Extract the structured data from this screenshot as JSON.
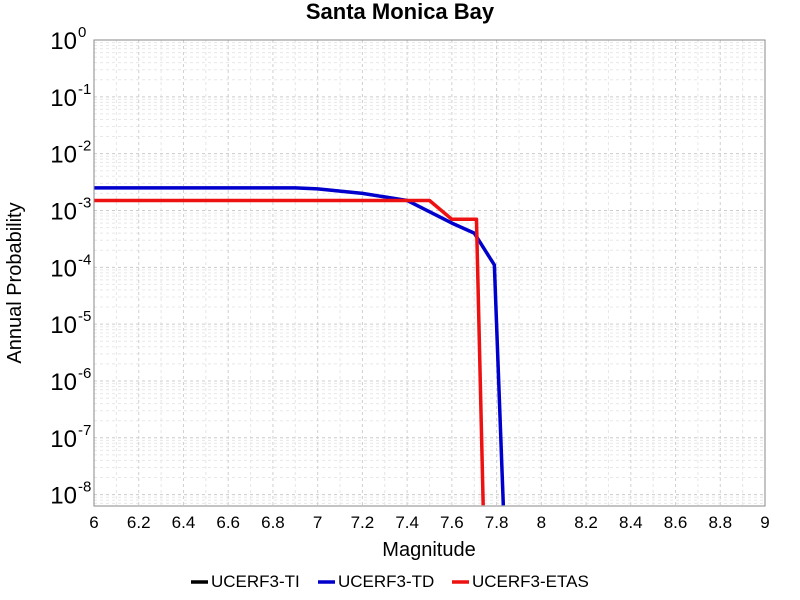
{
  "chart_data": {
    "type": "line",
    "title": "Santa Monica Bay",
    "xlabel": "Magnitude",
    "ylabel": "Annual Probability",
    "xlim": [
      6,
      9
    ],
    "ylim_exponent": [
      -8.2,
      0
    ],
    "y_scale": "log",
    "grid": true,
    "legend_position": "bottom",
    "x_ticks": [
      "6",
      "6.2",
      "6.4",
      "6.6",
      "6.8",
      "7",
      "7.2",
      "7.4",
      "7.6",
      "7.8",
      "8",
      "8.2",
      "8.4",
      "8.6",
      "8.8",
      "9"
    ],
    "y_ticks": [
      {
        "base": "10",
        "exp": "0",
        "value": 1
      },
      {
        "base": "10",
        "exp": "-1",
        "value": 0.1
      },
      {
        "base": "10",
        "exp": "-2",
        "value": 0.01
      },
      {
        "base": "10",
        "exp": "-3",
        "value": 0.001
      },
      {
        "base": "10",
        "exp": "-4",
        "value": 0.0001
      },
      {
        "base": "10",
        "exp": "-5",
        "value": 1e-05
      },
      {
        "base": "10",
        "exp": "-6",
        "value": 1e-06
      },
      {
        "base": "10",
        "exp": "-7",
        "value": 1e-07
      },
      {
        "base": "10",
        "exp": "-8",
        "value": 1e-08
      }
    ],
    "series": [
      {
        "name": "UCERF3-TI",
        "color": "#000000",
        "x": [],
        "y": []
      },
      {
        "name": "UCERF3-TD",
        "color": "#0000cc",
        "x": [
          6.0,
          6.9,
          7.0,
          7.2,
          7.4,
          7.6,
          7.7,
          7.79,
          7.83
        ],
        "y": [
          0.0025,
          0.0025,
          0.0024,
          0.002,
          0.0015,
          0.0006,
          0.0004,
          0.00011,
          6.5e-09
        ]
      },
      {
        "name": "UCERF3-ETAS",
        "color": "#ee1111",
        "x": [
          6.0,
          7.5,
          7.6,
          7.71,
          7.74
        ],
        "y": [
          0.0015,
          0.0015,
          0.0007,
          0.0007,
          6.5e-09
        ]
      }
    ]
  }
}
